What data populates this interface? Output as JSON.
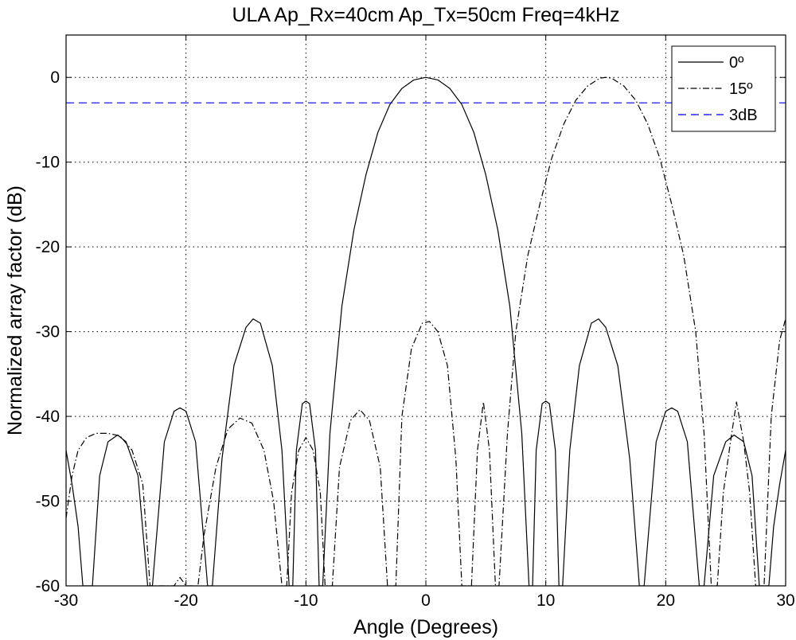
{
  "chart_data": {
    "type": "line",
    "title": "ULA Ap_Rx=40cm Ap_Tx=50cm Freq=4kHz",
    "xlabel": "Angle (Degrees)",
    "ylabel": "Normalized array factor (dB)",
    "xlim": [
      -30,
      30
    ],
    "ylim": [
      -60,
      5
    ],
    "xticks": [
      -30,
      -20,
      -10,
      0,
      10,
      20,
      30
    ],
    "yticks": [
      -60,
      -50,
      -40,
      -30,
      -20,
      -10,
      0
    ],
    "grid": true,
    "legend_position": "top-right",
    "series": [
      {
        "name": "0º",
        "style": "solid",
        "color": "#000000",
        "points": [
          [
            -30,
            -44
          ],
          [
            -29.5,
            -48
          ],
          [
            -29,
            -53
          ],
          [
            -28.6,
            -60
          ],
          [
            -27.8,
            -60
          ],
          [
            -27.2,
            -47
          ],
          [
            -26.5,
            -43
          ],
          [
            -25.7,
            -42.2
          ],
          [
            -25,
            -43
          ],
          [
            -24,
            -47
          ],
          [
            -23.2,
            -60
          ],
          [
            -22.8,
            -60
          ],
          [
            -21.8,
            -43
          ],
          [
            -21,
            -39.4
          ],
          [
            -20.5,
            -39
          ],
          [
            -20,
            -39.4
          ],
          [
            -19.2,
            -43
          ],
          [
            -18.2,
            -60
          ],
          [
            -17.8,
            -60
          ],
          [
            -17,
            -45
          ],
          [
            -16,
            -34
          ],
          [
            -15,
            -29.5
          ],
          [
            -14.4,
            -28.5
          ],
          [
            -13.8,
            -29
          ],
          [
            -12.8,
            -34
          ],
          [
            -12,
            -44
          ],
          [
            -11.4,
            -60
          ],
          [
            -11.1,
            -60
          ],
          [
            -10.8,
            -44
          ],
          [
            -10.3,
            -38.5
          ],
          [
            -10,
            -38.2
          ],
          [
            -9.7,
            -38.5
          ],
          [
            -9.2,
            -44
          ],
          [
            -8.9,
            -60
          ],
          [
            -8.6,
            -60
          ],
          [
            -8,
            -42
          ],
          [
            -7,
            -27
          ],
          [
            -6,
            -18
          ],
          [
            -5,
            -11.5
          ],
          [
            -4,
            -6.5
          ],
          [
            -3,
            -3.2
          ],
          [
            -2,
            -1.3
          ],
          [
            -1,
            -0.3
          ],
          [
            0,
            0
          ],
          [
            1,
            -0.3
          ],
          [
            2,
            -1.3
          ],
          [
            3,
            -3.2
          ],
          [
            4,
            -6.5
          ],
          [
            5,
            -11.5
          ],
          [
            6,
            -18
          ],
          [
            7,
            -27
          ],
          [
            8,
            -42
          ],
          [
            8.6,
            -60
          ],
          [
            8.9,
            -60
          ],
          [
            9.2,
            -44
          ],
          [
            9.7,
            -38.5
          ],
          [
            10,
            -38.2
          ],
          [
            10.3,
            -38.5
          ],
          [
            10.8,
            -44
          ],
          [
            11.1,
            -60
          ],
          [
            11.4,
            -60
          ],
          [
            12,
            -44
          ],
          [
            12.8,
            -34
          ],
          [
            13.8,
            -29
          ],
          [
            14.4,
            -28.5
          ],
          [
            15,
            -29.5
          ],
          [
            16,
            -34
          ],
          [
            17,
            -45
          ],
          [
            17.8,
            -60
          ],
          [
            18.2,
            -60
          ],
          [
            19.2,
            -43
          ],
          [
            20,
            -39.4
          ],
          [
            20.5,
            -39
          ],
          [
            21,
            -39.4
          ],
          [
            21.8,
            -43
          ],
          [
            22.8,
            -60
          ],
          [
            23.2,
            -60
          ],
          [
            24,
            -47
          ],
          [
            25,
            -43
          ],
          [
            25.7,
            -42.2
          ],
          [
            26.5,
            -43
          ],
          [
            27.2,
            -47
          ],
          [
            27.8,
            -60
          ],
          [
            28.6,
            -60
          ],
          [
            29,
            -53
          ],
          [
            29.5,
            -48
          ],
          [
            30,
            -44
          ]
        ]
      },
      {
        "name": "15º",
        "style": "dashdot",
        "color": "#000000",
        "points": [
          [
            -30,
            -52
          ],
          [
            -29.5,
            -47
          ],
          [
            -29,
            -44
          ],
          [
            -28.3,
            -42.5
          ],
          [
            -27.5,
            -42
          ],
          [
            -26.5,
            -42
          ],
          [
            -25.5,
            -42.3
          ],
          [
            -24.5,
            -44
          ],
          [
            -23.6,
            -48
          ],
          [
            -23,
            -60
          ],
          [
            -22.5,
            -60
          ],
          [
            -22,
            -60
          ],
          [
            -21.5,
            -60
          ],
          [
            -21,
            -60
          ],
          [
            -20.5,
            -59
          ],
          [
            -20,
            -60
          ],
          [
            -19,
            -60
          ],
          [
            -18.5,
            -54
          ],
          [
            -17.5,
            -46
          ],
          [
            -16.5,
            -41.5
          ],
          [
            -15.5,
            -40.2
          ],
          [
            -14.5,
            -40.8
          ],
          [
            -13.5,
            -44
          ],
          [
            -12.7,
            -50
          ],
          [
            -12,
            -60
          ],
          [
            -11.6,
            -60
          ],
          [
            -11.2,
            -49
          ],
          [
            -10.6,
            -44
          ],
          [
            -10,
            -42.5
          ],
          [
            -9.4,
            -44
          ],
          [
            -8.8,
            -49
          ],
          [
            -8.4,
            -60
          ],
          [
            -7.8,
            -60
          ],
          [
            -7.2,
            -46
          ],
          [
            -6.3,
            -40.5
          ],
          [
            -5.5,
            -39.2
          ],
          [
            -4.7,
            -40.5
          ],
          [
            -3.8,
            -46
          ],
          [
            -3.2,
            -60
          ],
          [
            -2.5,
            -60
          ],
          [
            -2,
            -40
          ],
          [
            -1.2,
            -32
          ],
          [
            -0.3,
            -29
          ],
          [
            0.3,
            -28.8
          ],
          [
            1,
            -30
          ],
          [
            1.8,
            -34
          ],
          [
            2.5,
            -45
          ],
          [
            3,
            -60
          ],
          [
            3.8,
            -60
          ],
          [
            4.3,
            -44
          ],
          [
            4.8,
            -38.3
          ],
          [
            5.3,
            -44
          ],
          [
            5.8,
            -60
          ],
          [
            6.1,
            -60
          ],
          [
            6.8,
            -42
          ],
          [
            7.5,
            -30
          ],
          [
            8.5,
            -21
          ],
          [
            9.5,
            -15
          ],
          [
            10.5,
            -9.5
          ],
          [
            11.5,
            -5.5
          ],
          [
            12.5,
            -2.7
          ],
          [
            13.5,
            -1
          ],
          [
            14.5,
            -0.1
          ],
          [
            15,
            0
          ],
          [
            15.5,
            -0.1
          ],
          [
            16.5,
            -1
          ],
          [
            17.5,
            -2.7
          ],
          [
            18.5,
            -5.5
          ],
          [
            19.5,
            -9.5
          ],
          [
            20.5,
            -15
          ],
          [
            21.5,
            -21
          ],
          [
            22.5,
            -30
          ],
          [
            23.2,
            -42
          ],
          [
            23.8,
            -60
          ],
          [
            24.3,
            -60
          ],
          [
            24.8,
            -49
          ],
          [
            25.4,
            -43
          ],
          [
            25.9,
            -38.3
          ],
          [
            26.5,
            -43
          ],
          [
            27,
            -49
          ],
          [
            27.5,
            -60
          ],
          [
            28.2,
            -60
          ],
          [
            28.8,
            -40
          ],
          [
            29.5,
            -31
          ],
          [
            30,
            -28.5
          ]
        ]
      },
      {
        "name": "3dB",
        "style": "dashed",
        "color": "#0000ff",
        "points": [
          [
            -30,
            -3
          ],
          [
            30,
            -3
          ]
        ]
      }
    ]
  }
}
